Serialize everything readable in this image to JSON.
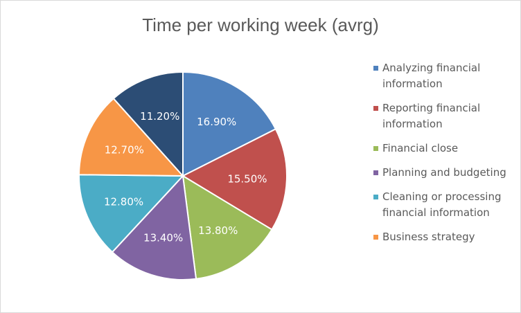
{
  "chart_data": {
    "type": "pie",
    "title": "Time per working week (avrg)",
    "legend_position": "right",
    "slices": [
      {
        "label": "Analyzing financial information",
        "value": 16.9,
        "value_label": "16.90%",
        "color": "#4f81bd"
      },
      {
        "label": "Reporting financial information",
        "value": 15.5,
        "value_label": "15.50%",
        "color": "#c0504d"
      },
      {
        "label": "Financial close",
        "value": 13.8,
        "value_label": "13.80%",
        "color": "#9bbb59"
      },
      {
        "label": "Planning and budgeting",
        "value": 13.4,
        "value_label": "13.40%",
        "color": "#8064a2"
      },
      {
        "label": "Cleaning or processing financial information",
        "value": 12.8,
        "value_label": "12.80%",
        "color": "#4bacc6"
      },
      {
        "label": "Business strategy",
        "value": 12.7,
        "value_label": "12.70%",
        "color": "#f79646"
      },
      {
        "label": "",
        "value": 11.2,
        "value_label": "11.20%",
        "color": "#2c4d75"
      }
    ]
  }
}
